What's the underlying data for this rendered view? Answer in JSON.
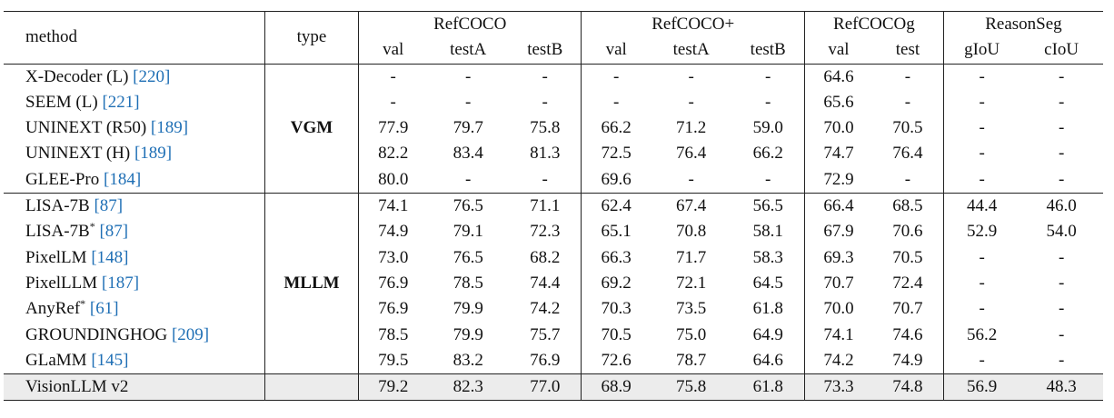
{
  "header": {
    "method": "method",
    "type": "type",
    "groups": [
      "RefCOCO",
      "RefCOCO+",
      "RefCOCOg",
      "ReasonSeg"
    ],
    "subs": [
      "val",
      "testA",
      "testB",
      "val",
      "testA",
      "testB",
      "val",
      "test",
      "gIoU",
      "cIoU"
    ]
  },
  "sections": [
    {
      "type": "VGM",
      "rows": [
        {
          "name": "X-Decoder (L) ",
          "ref": "[220]",
          "star": "",
          "values": [
            "-",
            "-",
            "-",
            "-",
            "-",
            "-",
            "64.6",
            "-",
            "-",
            "-"
          ]
        },
        {
          "name": "SEEM (L) ",
          "ref": "[221]",
          "star": "",
          "values": [
            "-",
            "-",
            "-",
            "-",
            "-",
            "-",
            "65.6",
            "-",
            "-",
            "-"
          ]
        },
        {
          "name": "UNINEXT (R50) ",
          "ref": "[189]",
          "star": "",
          "values": [
            "77.9",
            "79.7",
            "75.8",
            "66.2",
            "71.2",
            "59.0",
            "70.0",
            "70.5",
            "-",
            "-"
          ]
        },
        {
          "name": "UNINEXT (H) ",
          "ref": "[189]",
          "star": "",
          "values": [
            "82.2",
            "83.4",
            "81.3",
            "72.5",
            "76.4",
            "66.2",
            "74.7",
            "76.4",
            "-",
            "-"
          ]
        },
        {
          "name": "GLEE-Pro ",
          "ref": "[184]",
          "star": "",
          "values": [
            "80.0",
            "-",
            "-",
            "69.6",
            "-",
            "-",
            "72.9",
            "-",
            "-",
            "-"
          ]
        }
      ]
    },
    {
      "type": "MLLM",
      "rows": [
        {
          "name": "LISA-7B ",
          "ref": "[87]",
          "star": "",
          "values": [
            "74.1",
            "76.5",
            "71.1",
            "62.4",
            "67.4",
            "56.5",
            "66.4",
            "68.5",
            "44.4",
            "46.0"
          ]
        },
        {
          "name": "LISA-7B",
          "ref": "[87]",
          "star": "*",
          "values": [
            "74.9",
            "79.1",
            "72.3",
            "65.1",
            "70.8",
            "58.1",
            "67.9",
            "70.6",
            "52.9",
            "54.0"
          ]
        },
        {
          "name": "PixelLM ",
          "ref": "[148]",
          "star": "",
          "values": [
            "73.0",
            "76.5",
            "68.2",
            "66.3",
            "71.7",
            "58.3",
            "69.3",
            "70.5",
            "-",
            "-"
          ]
        },
        {
          "name": "PixelLLM ",
          "ref": "[187]",
          "star": "",
          "values": [
            "76.9",
            "78.5",
            "74.4",
            "69.2",
            "72.1",
            "64.5",
            "70.7",
            "72.4",
            "-",
            "-"
          ]
        },
        {
          "name": "AnyRef",
          "ref": "[61]",
          "star": "*",
          "values": [
            "76.9",
            "79.9",
            "74.2",
            "70.3",
            "73.5",
            "61.8",
            "70.0",
            "70.7",
            "-",
            "-"
          ]
        },
        {
          "name": "GROUNDINGHOG ",
          "ref": "[209]",
          "star": "",
          "values": [
            "78.5",
            "79.9",
            "75.7",
            "70.5",
            "75.0",
            "64.9",
            "74.1",
            "74.6",
            "56.2",
            "-"
          ]
        },
        {
          "name": "GLaMM ",
          "ref": "[145]",
          "star": "",
          "values": [
            "79.5",
            "83.2",
            "76.9",
            "72.6",
            "78.7",
            "64.6",
            "74.2",
            "74.9",
            "-",
            "-"
          ]
        }
      ]
    }
  ],
  "final_row": {
    "name": "VisionLLM v2",
    "values": [
      "79.2",
      "82.3",
      "77.0",
      "68.9",
      "75.8",
      "61.8",
      "73.3",
      "74.8",
      "56.9",
      "48.3"
    ]
  }
}
